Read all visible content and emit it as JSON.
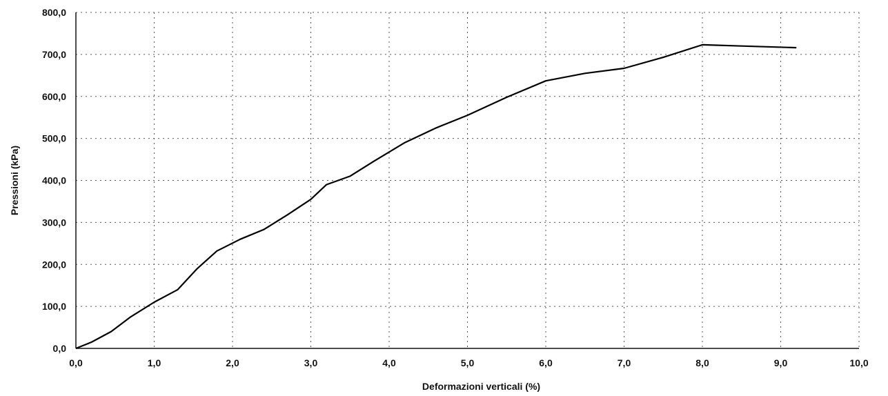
{
  "chart_data": {
    "type": "line",
    "title": "",
    "xlabel": "Deformazioni verticali (%)",
    "ylabel": "Pressioni (kPa)",
    "xlim": [
      0,
      10
    ],
    "ylim": [
      0,
      800
    ],
    "grid": true,
    "x_ticks": [
      "0,0",
      "1,0",
      "2,0",
      "3,0",
      "4,0",
      "5,0",
      "6,0",
      "7,0",
      "8,0",
      "9,0",
      "10,0"
    ],
    "y_ticks": [
      "0,0",
      "100,0",
      "200,0",
      "300,0",
      "400,0",
      "500,0",
      "600,0",
      "700,0",
      "800,0"
    ],
    "series": [
      {
        "x": [
          0.0,
          0.2,
          0.45,
          0.7,
          1.0,
          1.3,
          1.55,
          1.8,
          2.1,
          2.4,
          2.7,
          3.0,
          3.2,
          3.5,
          3.8,
          4.2,
          4.6,
          5.0,
          5.5,
          6.0,
          6.5,
          7.0,
          7.5,
          8.0,
          8.5,
          9.2
        ],
        "y": [
          0,
          15,
          40,
          75,
          110,
          140,
          190,
          232,
          260,
          283,
          318,
          355,
          390,
          410,
          445,
          490,
          525,
          555,
          598,
          637,
          655,
          667,
          693,
          723,
          720,
          716
        ]
      }
    ]
  }
}
